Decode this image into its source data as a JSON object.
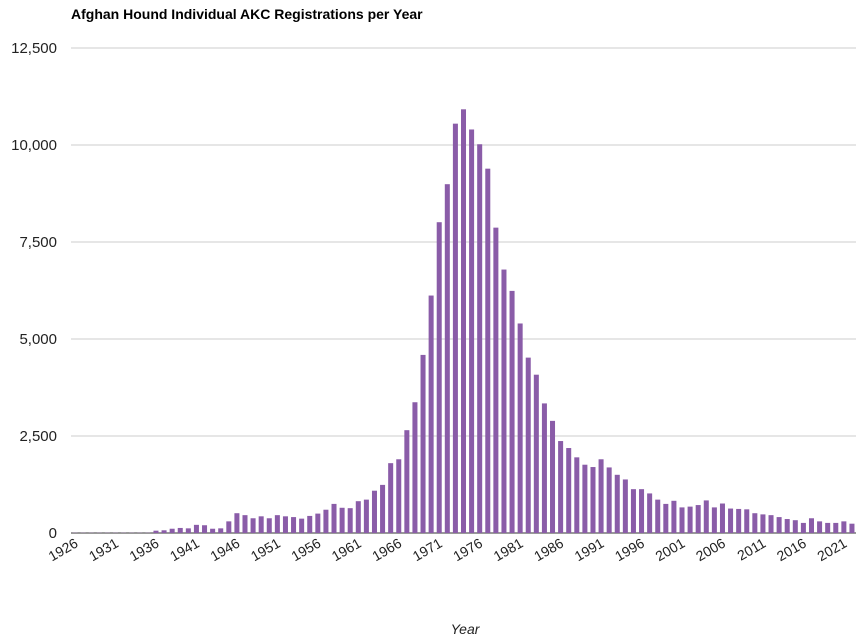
{
  "chart_data": {
    "type": "bar",
    "title": "Afghan Hound Individual AKC Registrations per Year",
    "xlabel": "Year",
    "ylabel": "",
    "ylim": [
      0,
      12500
    ],
    "y_ticks": [
      "0",
      "2,500",
      "5,000",
      "7,500",
      "10,000",
      "12,500"
    ],
    "x_tick_labels": [
      "1926",
      "1931",
      "1936",
      "1941",
      "1946",
      "1951",
      "1956",
      "1961",
      "1966",
      "1971",
      "1976",
      "1981",
      "1986",
      "1991",
      "1996",
      "2001",
      "2006",
      "2011",
      "2016",
      "2021"
    ],
    "grid": true,
    "legend": "none",
    "color": "#8a5ca8",
    "categories": [
      1926,
      1927,
      1928,
      1929,
      1930,
      1931,
      1932,
      1933,
      1934,
      1935,
      1936,
      1937,
      1938,
      1939,
      1940,
      1941,
      1942,
      1943,
      1944,
      1945,
      1946,
      1947,
      1948,
      1949,
      1950,
      1951,
      1952,
      1953,
      1954,
      1955,
      1956,
      1957,
      1958,
      1959,
      1960,
      1961,
      1962,
      1963,
      1964,
      1965,
      1966,
      1967,
      1968,
      1969,
      1970,
      1971,
      1972,
      1973,
      1974,
      1975,
      1976,
      1977,
      1978,
      1979,
      1980,
      1981,
      1982,
      1983,
      1984,
      1985,
      1986,
      1987,
      1988,
      1989,
      1990,
      1991,
      1992,
      1993,
      1994,
      1995,
      1996,
      1997,
      1998,
      1999,
      2000,
      2001,
      2002,
      2003,
      2004,
      2005,
      2006,
      2007,
      2008,
      2009,
      2010,
      2011,
      2012,
      2013,
      2014,
      2015,
      2016,
      2017,
      2018,
      2019,
      2020,
      2021,
      2022
    ],
    "values": [
      5,
      5,
      5,
      5,
      5,
      5,
      5,
      5,
      5,
      5,
      60,
      70,
      110,
      130,
      120,
      210,
      200,
      110,
      120,
      300,
      510,
      460,
      380,
      430,
      380,
      460,
      430,
      410,
      370,
      440,
      500,
      600,
      750,
      650,
      640,
      820,
      860,
      1090,
      1240,
      1800,
      1900,
      2650,
      3370,
      4590,
      6120,
      8010,
      8990,
      10550,
      10920,
      10400,
      10020,
      9390,
      7870,
      6790,
      6240,
      5400,
      4520,
      4080,
      3340,
      2890,
      2370,
      2190,
      1950,
      1760,
      1700,
      1900,
      1690,
      1500,
      1380,
      1130,
      1130,
      1020,
      860,
      750,
      830,
      660,
      680,
      720,
      840,
      660,
      760,
      630,
      620,
      610,
      510,
      480,
      460,
      410,
      360,
      330,
      260,
      380,
      300,
      260,
      260,
      300,
      240
    ]
  }
}
